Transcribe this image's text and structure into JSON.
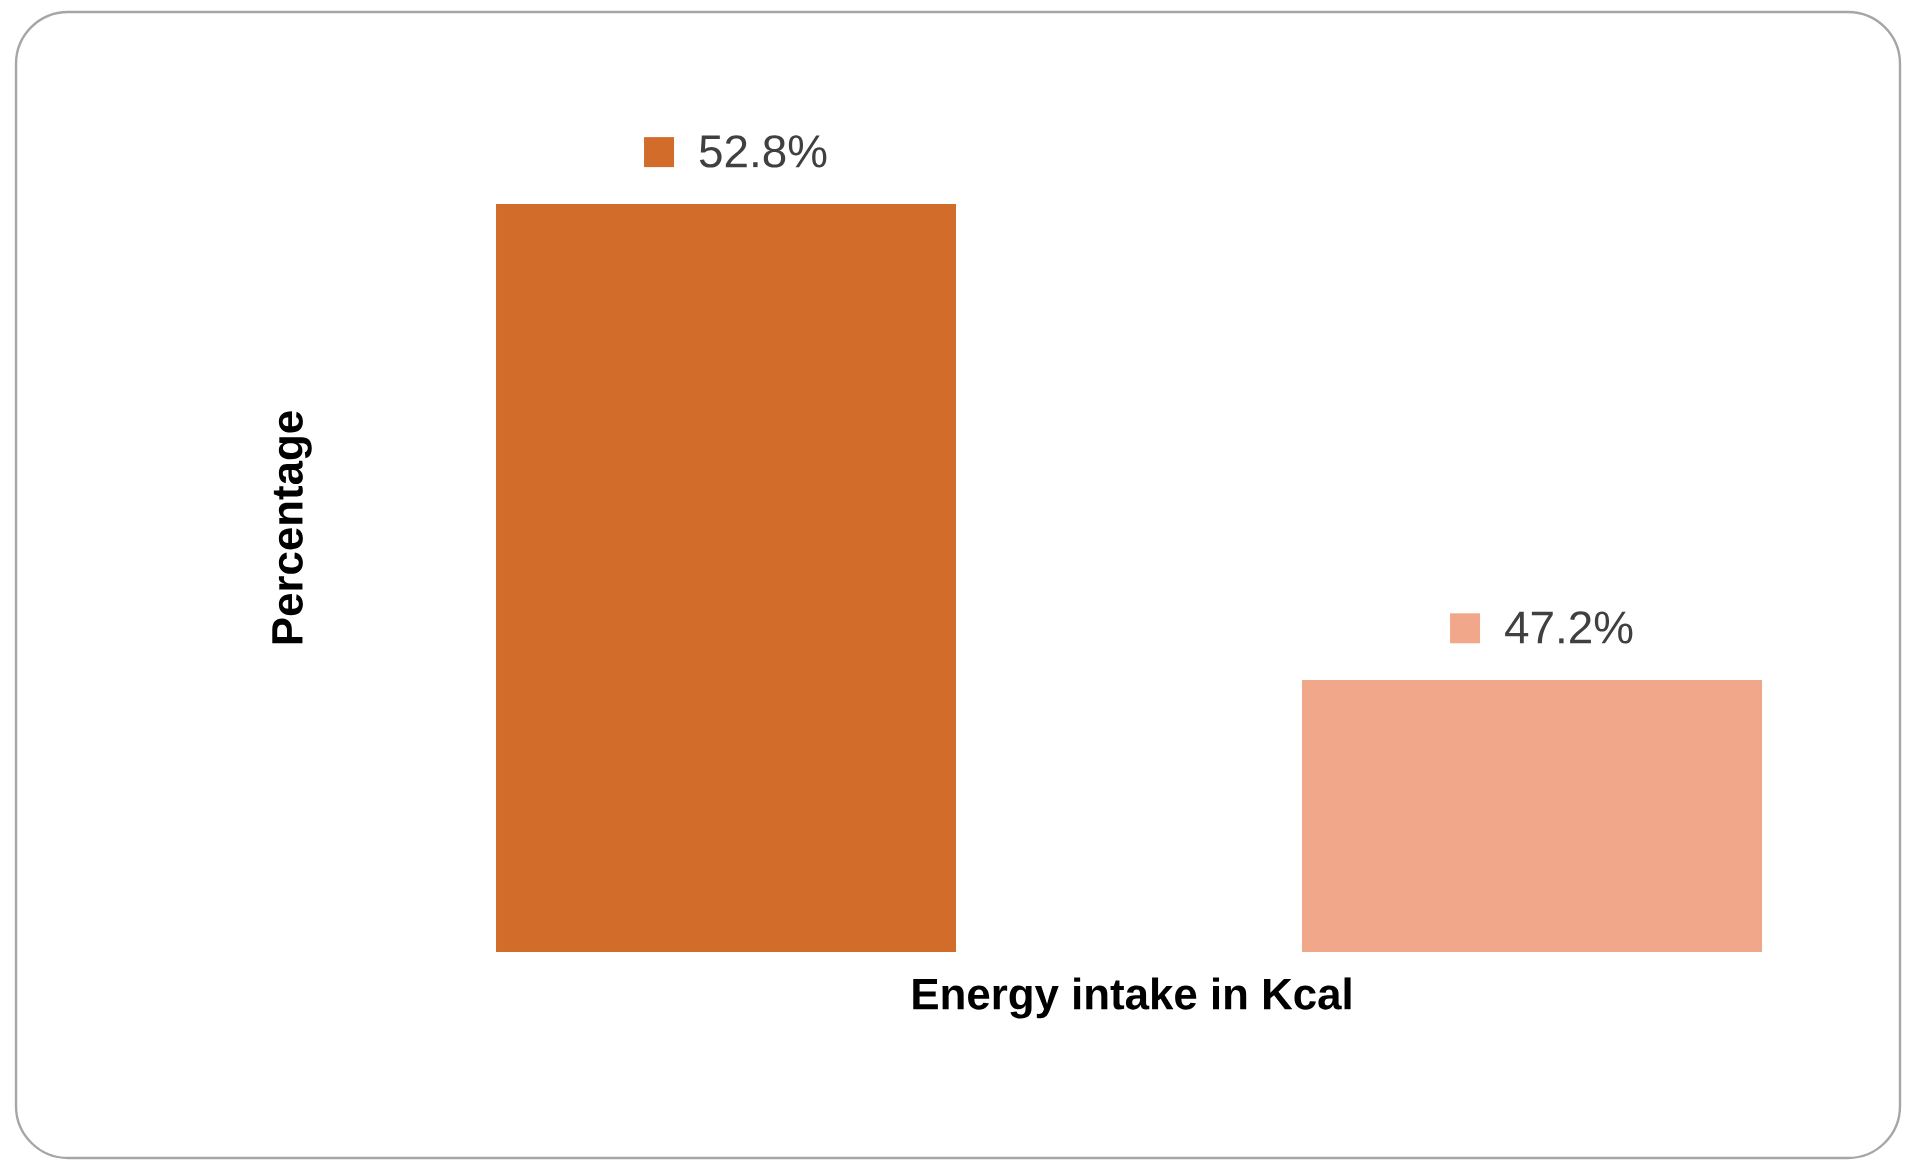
{
  "chart_data": {
    "type": "bar",
    "xlabel": "Energy intake in Kcal",
    "ylabel": "Percentage",
    "categories": [
      null,
      null
    ],
    "values": [
      52.8,
      47.2
    ],
    "colors": [
      "#d16c2b",
      "#f0a78a"
    ],
    "value_labels": [
      "52.8%",
      "47.2%"
    ],
    "ylim": [
      44,
      52.8
    ]
  }
}
